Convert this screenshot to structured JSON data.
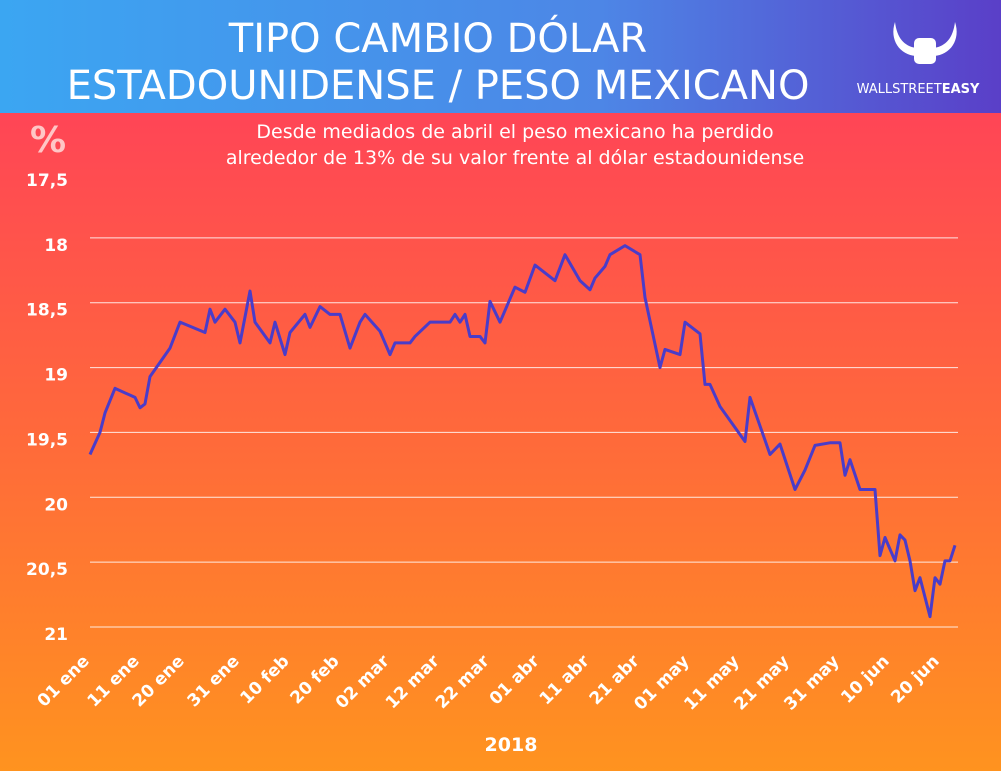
{
  "chart_data": {
    "type": "line",
    "title": [
      "TIPO CAMBIO DÓLAR",
      "ESTADOUNIDENSE / PESO MEXICANO"
    ],
    "subtitle": [
      "Desde mediados de abril el peso mexicano ha perdido",
      "alrededor de 13% de su valor frente al dólar estadounidense"
    ],
    "y_label": "%",
    "x_label": "2018",
    "x": [
      "01 ene",
      "03 ene",
      "04 ene",
      "06 ene",
      "10 ene",
      "11 ene",
      "12 ene",
      "13 ene",
      "17 ene",
      "19 ene",
      "24 ene",
      "25 ene",
      "26 ene",
      "28 ene",
      "30 ene",
      "31 ene",
      "02 feb",
      "03 feb",
      "06 feb",
      "07 feb",
      "09 feb",
      "10 feb",
      "13 feb",
      "14 feb",
      "16 feb",
      "18 feb",
      "20 feb",
      "22 feb",
      "24 feb",
      "25 feb",
      "28 feb",
      "02 mar",
      "03 mar",
      "06 mar",
      "07 mar",
      "10 mar",
      "14 mar",
      "15 mar",
      "16 mar",
      "17 mar",
      "18 mar",
      "20 mar",
      "21 mar",
      "22 mar",
      "24 mar",
      "27 mar",
      "29 mar",
      "31 mar",
      "04 abr",
      "06 abr",
      "09 abr",
      "11 abr",
      "12 abr",
      "14 abr",
      "15 abr",
      "18 abr",
      "21 abr",
      "22 abr",
      "25 abr",
      "26 abr",
      "29 abr",
      "30 abr",
      "03 may",
      "04 may",
      "05 may",
      "07 may",
      "12 may",
      "13 may",
      "17 may",
      "19 may",
      "22 may",
      "24 may",
      "26 may",
      "29 may",
      "31 may",
      "01 jun",
      "02 jun",
      "04 jun",
      "07 jun",
      "08 jun",
      "09 jun",
      "11 jun",
      "12 jun",
      "13 jun",
      "14 jun",
      "15 jun",
      "16 jun",
      "18 jun",
      "19 jun",
      "20 jun",
      "21 jun",
      "22 jun",
      "23 jun"
    ],
    "series": [
      {
        "color": "#4a3cc9",
        "values": [
          19.67,
          19.5,
          19.35,
          19.16,
          19.23,
          19.31,
          19.28,
          19.07,
          18.85,
          18.65,
          18.73,
          18.55,
          18.65,
          18.55,
          18.65,
          18.81,
          18.41,
          18.65,
          18.81,
          18.65,
          18.9,
          18.73,
          18.59,
          18.69,
          18.53,
          18.59,
          18.59,
          18.85,
          18.65,
          18.59,
          18.72,
          18.9,
          18.81,
          18.81,
          18.76,
          18.65,
          18.65,
          18.59,
          18.65,
          18.59,
          18.76,
          18.76,
          18.81,
          18.49,
          18.65,
          18.38,
          18.42,
          18.21,
          18.33,
          18.13,
          18.33,
          18.4,
          18.31,
          18.22,
          18.13,
          18.06,
          18.13,
          18.46,
          19.0,
          18.86,
          18.9,
          18.65,
          18.74,
          19.13,
          19.13,
          19.3,
          19.57,
          19.23,
          19.67,
          19.59,
          19.94,
          19.79,
          19.6,
          19.58,
          19.58,
          19.83,
          19.71,
          19.94,
          19.94,
          20.45,
          20.31,
          20.49,
          20.29,
          20.33,
          20.49,
          20.72,
          20.62,
          20.92,
          20.62,
          20.67,
          20.49,
          20.49,
          20.37
        ]
      }
    ],
    "xticks": [
      "01 ene",
      "11 ene",
      "20 ene",
      "31 ene",
      "10 feb",
      "20 feb",
      "02 mar",
      "12 mar",
      "22 mar",
      "01 abr",
      "11 abr",
      "21 abr",
      "01 may",
      "11 may",
      "21 may",
      "31 may",
      "10 jun",
      "20 jun"
    ],
    "ylim": [
      17.5,
      21
    ],
    "y_inverted": true,
    "yticks": [
      {
        "value": 17.5,
        "label": "17,5"
      },
      18,
      {
        "value": 18.5,
        "label": "18,5"
      },
      19,
      {
        "value": 19.5,
        "label": "19,5"
      },
      20,
      {
        "value": 20.5,
        "label": "20,5"
      },
      21
    ],
    "grid": true
  },
  "logo": [
    "WALLSTREET",
    "EASY"
  ]
}
